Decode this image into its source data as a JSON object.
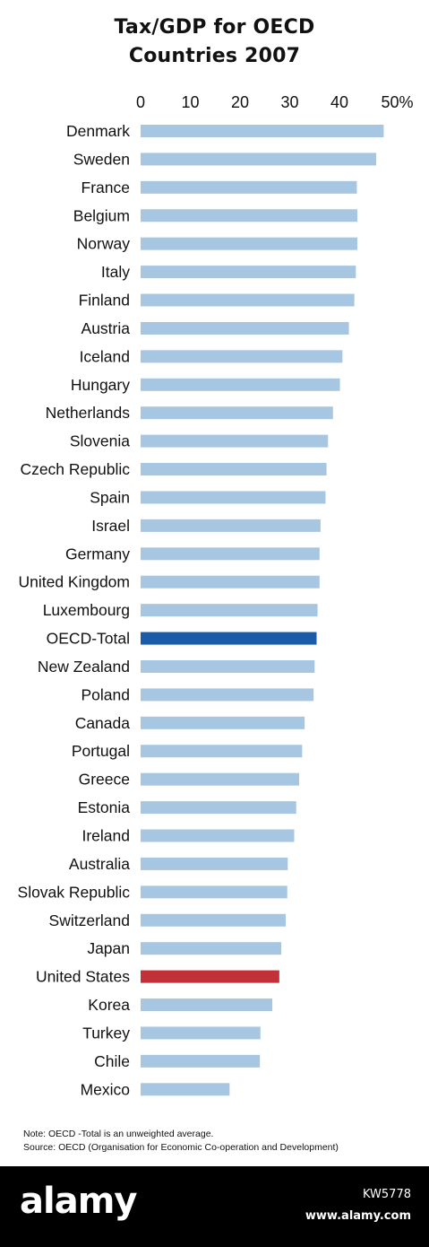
{
  "chart_data": {
    "type": "bar",
    "orientation": "horizontal",
    "title": "Tax/GDP for OECD",
    "subtitle": "Countries 2007",
    "x_ticks": [
      "0",
      "10",
      "20",
      "30",
      "40",
      "50%"
    ],
    "xlim": [
      0,
      50
    ],
    "categories": [
      "Denmark",
      "Sweden",
      "France",
      "Belgium",
      "Norway",
      "Italy",
      "Finland",
      "Austria",
      "Iceland",
      "Hungary",
      "Netherlands",
      "Slovenia",
      "Czech Republic",
      "Spain",
      "Israel",
      "Germany",
      "United Kingdom",
      "Luxembourg",
      "OECD-Total",
      "New Zealand",
      "Poland",
      "Canada",
      "Portugal",
      "Greece",
      "Estonia",
      "Ireland",
      "Australia",
      "Slovak Republic",
      "Switzerland",
      "Japan",
      "United States",
      "Korea",
      "Turkey",
      "Chile",
      "Mexico"
    ],
    "values": [
      48.9,
      47.4,
      43.5,
      43.6,
      43.6,
      43.3,
      43.0,
      41.9,
      40.6,
      40.1,
      38.7,
      37.7,
      37.4,
      37.2,
      36.2,
      36.0,
      36.0,
      35.6,
      35.4,
      35.0,
      34.8,
      33.0,
      32.5,
      31.9,
      31.3,
      30.9,
      29.6,
      29.5,
      29.2,
      28.3,
      27.9,
      26.5,
      24.1,
      24.0,
      17.9
    ],
    "highlight": {
      "OECD-Total": "#1a5ca8",
      "United States": "#c23038"
    },
    "bar_color": "#a7c6e2",
    "grid": false,
    "legend": "none"
  },
  "notes": {
    "line1": "Note: OECD -Total is an unweighted average.",
    "line2": "Source: OECD (Organisation for Economic Co-operation and Development)"
  },
  "footer": {
    "logo": "alamy",
    "image_id": "KW5778",
    "url": "www.alamy.com"
  }
}
